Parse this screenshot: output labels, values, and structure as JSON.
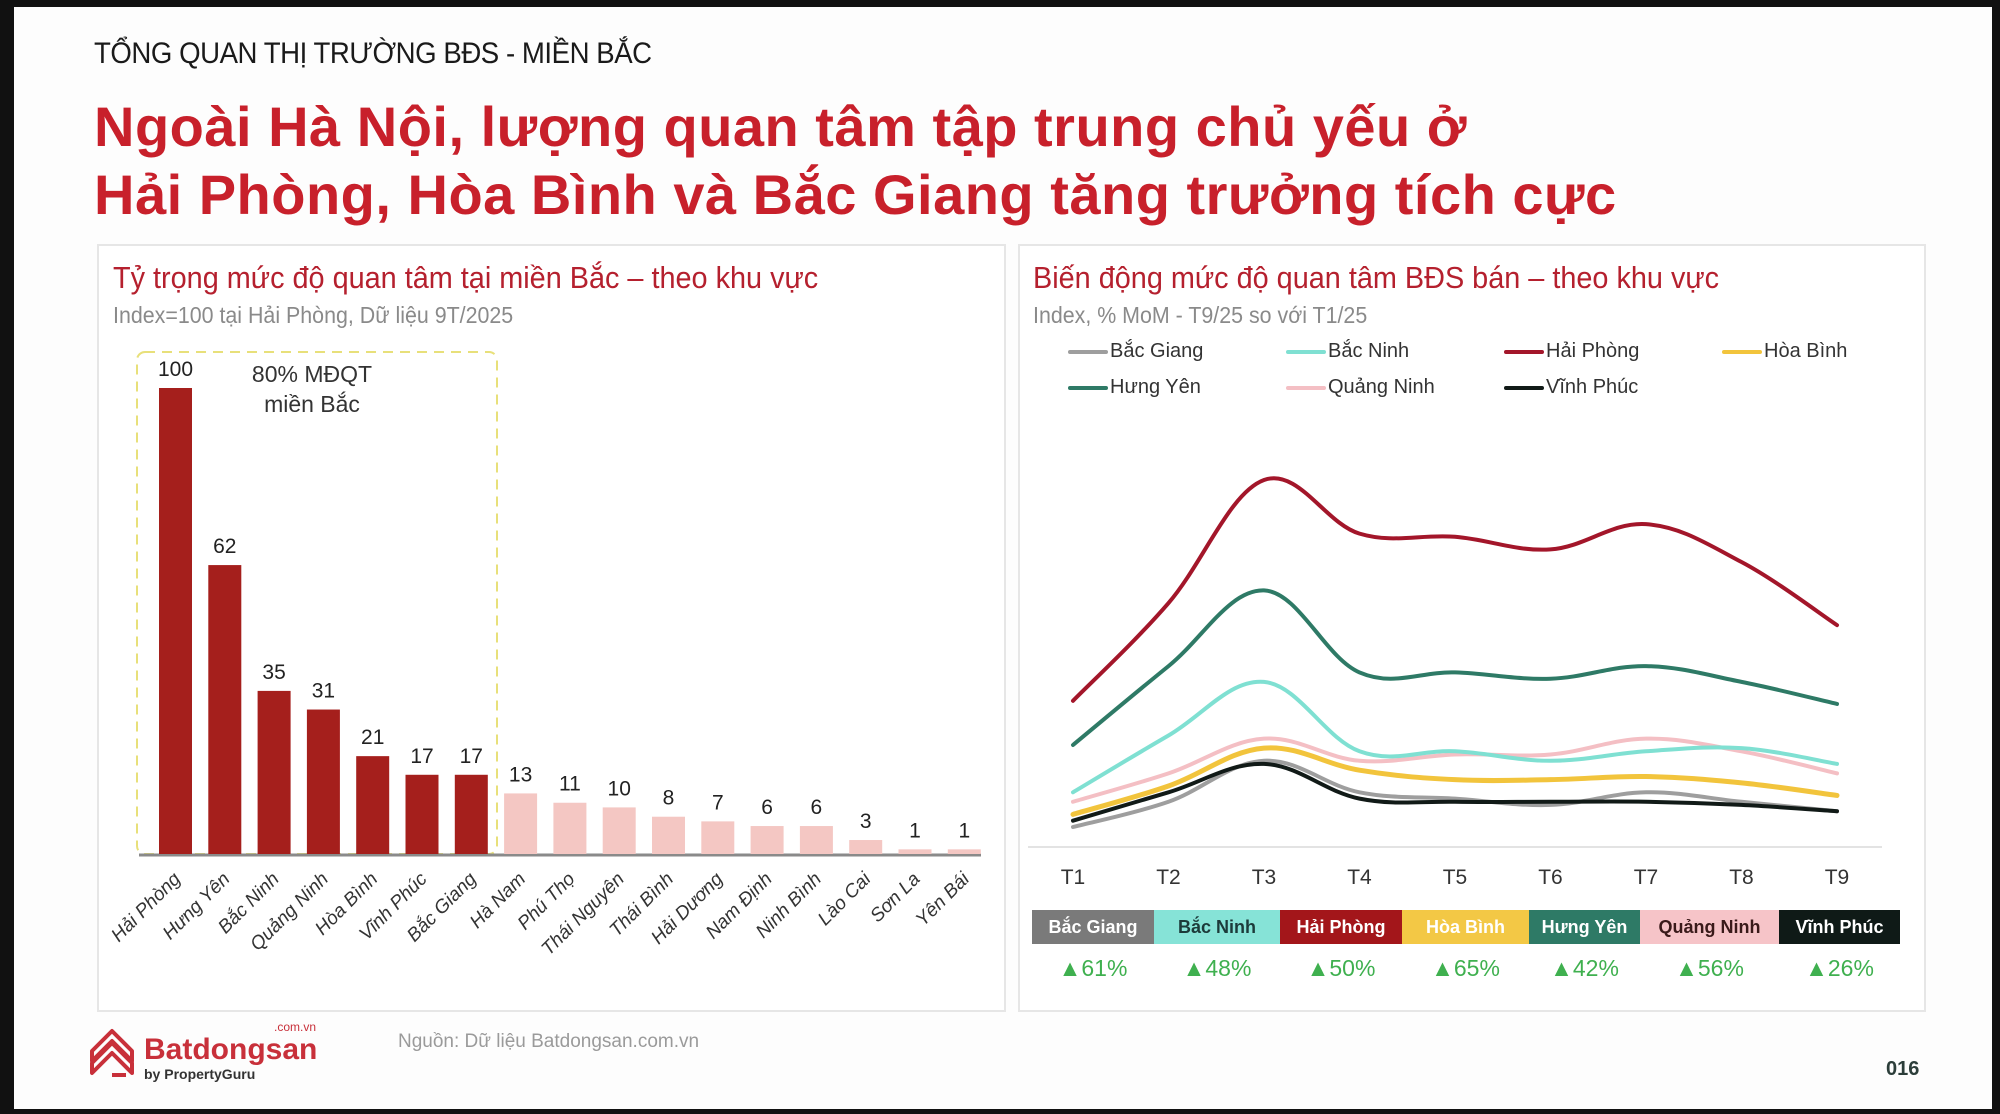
{
  "slide": {
    "kicker": "TỔNG QUAN THỊ TRƯỜNG BĐS - MIỀN BẮC",
    "headline_line1": "Ngoài Hà Nội, lượng quan tâm tập trung chủ yếu ở",
    "headline_line2": "Hải Phòng, Hòa Bình và Bắc Giang tăng trưởng tích cực",
    "source": "Nguồn: Dữ liệu Batdongsan.com.vn",
    "page_number": "016",
    "logo": {
      "brand": "Batdongsan",
      "domain": ".com.vn",
      "tagline": "by PropertyGuru",
      "icon": "house-stack-icon"
    }
  },
  "colors": {
    "headline": "#c8202b",
    "bar_top": "#a51f1c",
    "bar_rest": "#f4c7c3",
    "highlight_box": "#e8e07a",
    "positive": "#3fb04f"
  },
  "left_card": {
    "title": "Tỷ trọng mức độ quan tâm tại miền Bắc – theo khu vực",
    "subtitle": "Index=100 tại Hải Phòng, Dữ liệu 9T/2025",
    "annotation_line1": "80% MĐQT",
    "annotation_line2": "miền Bắc"
  },
  "right_card": {
    "title": "Biến động mức độ quan tâm BĐS bán – theo khu vực",
    "subtitle": "Index, % MoM -  T9/25 so với T1/25"
  },
  "chart_data": [
    {
      "type": "bar",
      "title": "Tỷ trọng mức độ quan tâm tại miền Bắc – theo khu vực",
      "subtitle": "Index=100 tại Hải Phòng, Dữ liệu 9T/2025",
      "xlabel": "",
      "ylabel": "",
      "categories": [
        "Hải Phòng",
        "Hưng Yên",
        "Bắc Ninh",
        "Quảng Ninh",
        "Hòa Bình",
        "Vĩnh Phúc",
        "Bắc Giang",
        "Hà Nam",
        "Phú Thọ",
        "Thái Nguyên",
        "Thái Bình",
        "Hải Dương",
        "Nam Định",
        "Ninh Bình",
        "Lào Cai",
        "Sơn La",
        "Yên Bái"
      ],
      "values": [
        100,
        62,
        35,
        31,
        21,
        17,
        17,
        13,
        11,
        10,
        8,
        7,
        6,
        6,
        3,
        1,
        1
      ],
      "highlight_count": 7,
      "annotation": "80% MĐQT miền Bắc",
      "ylim": [
        0,
        100
      ],
      "grid": false,
      "data_labels": true
    },
    {
      "type": "line",
      "title": "Biến động mức độ quan tâm BĐS bán – theo khu vực",
      "subtitle": "Index, % MoM -  T9/25 so với T1/25",
      "x": [
        "T1",
        "T2",
        "T3",
        "T4",
        "T5",
        "T6",
        "T7",
        "T8",
        "T9"
      ],
      "xlabel": "",
      "ylabel": "",
      "grid": false,
      "legend_position": "top",
      "y_axis_shown": false,
      "note": "Values are relative index positions (higher = more interest), estimated from curve heights; no y-axis is shown",
      "series": [
        {
          "name": "Bắc Giang",
          "color": "#9e9e9e",
          "values": [
            6,
            14,
            27,
            17,
            15,
            13,
            17,
            14,
            11
          ],
          "change_label": "▲61%"
        },
        {
          "name": "Bắc Ninh",
          "color": "#7fe0d2",
          "values": [
            17,
            35,
            52,
            30,
            30,
            27,
            30,
            31,
            26
          ],
          "change_label": "▲48%"
        },
        {
          "name": "Hải Phòng",
          "color": "#a3162a",
          "values": [
            46,
            77,
            116,
            99,
            98,
            94,
            102,
            90,
            70
          ],
          "change_label": "▲50%"
        },
        {
          "name": "Hòa Bình",
          "color": "#f2c43c",
          "values": [
            10,
            19,
            31,
            24,
            21,
            21,
            22,
            20,
            16
          ],
          "change_label": "▲65%"
        },
        {
          "name": "Hưng Yên",
          "color": "#2e7a66",
          "values": [
            32,
            57,
            81,
            55,
            55,
            53,
            57,
            52,
            45
          ],
          "change_label": "▲42%"
        },
        {
          "name": "Quảng Ninh",
          "color": "#f4bfc4",
          "values": [
            14,
            23,
            34,
            27,
            29,
            29,
            34,
            30,
            23
          ],
          "change_label": "▲56%"
        },
        {
          "name": "Vĩnh Phúc",
          "color": "#111a17",
          "values": [
            8,
            17,
            26,
            15,
            14,
            14,
            14,
            13,
            11
          ],
          "change_label": "▲26%"
        }
      ]
    }
  ],
  "summary_badges": [
    {
      "name": "Bắc Giang",
      "bg": "#7a7a7a",
      "fg": "#ffffff",
      "change": "▲61%"
    },
    {
      "name": "Bắc Ninh",
      "bg": "#86e3d7",
      "fg": "#1c3a3a",
      "change": "▲48%"
    },
    {
      "name": "Hải Phòng",
      "bg": "#a3161a",
      "fg": "#ffffff",
      "change": "▲50%"
    },
    {
      "name": "Hòa Bình",
      "bg": "#f3c845",
      "fg": "#ffffff",
      "change": "▲65%"
    },
    {
      "name": "Hưng Yên",
      "bg": "#2e7a66",
      "fg": "#ffffff",
      "change": "▲42%"
    },
    {
      "name": "Quảng Ninh",
      "bg": "#f6c4c8",
      "fg": "#3a1a1a",
      "change": "▲56%"
    },
    {
      "name": "Vĩnh Phúc",
      "bg": "#0f1a17",
      "fg": "#ffffff",
      "change": "▲26%"
    }
  ]
}
